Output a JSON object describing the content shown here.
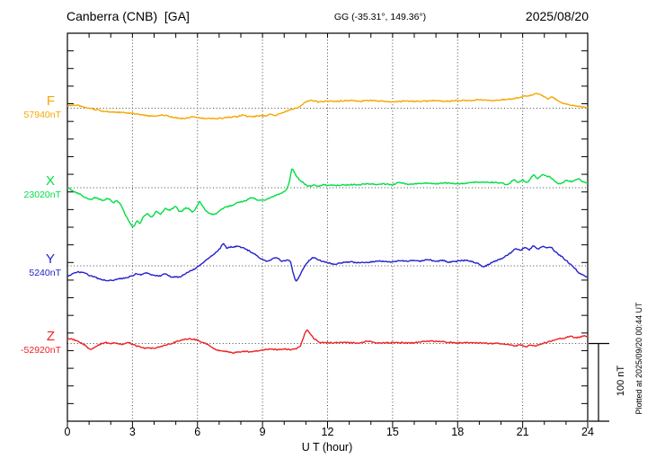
{
  "header": {
    "title": "Canberra (CNB)  [GA]",
    "coords": "GG (-35.31°, 149.36°)",
    "date": "2025/08/20"
  },
  "footer": {
    "plotted_at": "Plotted at 2025/09/20 00:44 UT"
  },
  "chart_data": {
    "type": "line",
    "title": "Canberra (CNB) [GA] magnetogram 2025/08/20",
    "xlabel": "U T (hour)",
    "x_range": [
      0,
      24
    ],
    "x_ticks": [
      "0",
      "3",
      "6",
      "9",
      "12",
      "15",
      "18",
      "21",
      "24"
    ],
    "grid": "dotted vertical gridlines every 3 hours; dotted horizontal baseline per component",
    "legend_position": "left margin, one colored label per trace baseline",
    "scale_bar": {
      "label": "100 nT",
      "nT": 100
    },
    "axis_color": "#000000",
    "grid_color": "#444444",
    "series": [
      {
        "name": "F",
        "baseline_label": "57940nT",
        "baseline_nT": 57940,
        "color": "#f5a700",
        "points_hour_nT": [
          [
            0,
            3
          ],
          [
            0.4,
            4
          ],
          [
            0.8,
            1
          ],
          [
            1.2,
            -1
          ],
          [
            1.7,
            -4
          ],
          [
            2.2,
            -5
          ],
          [
            2.7,
            -6
          ],
          [
            3.1,
            -7
          ],
          [
            3.5,
            -9
          ],
          [
            4,
            -10
          ],
          [
            4.4,
            -9
          ],
          [
            4.9,
            -12
          ],
          [
            5.4,
            -13
          ],
          [
            5.8,
            -11
          ],
          [
            6.2,
            -13
          ],
          [
            6.6,
            -13
          ],
          [
            7,
            -13
          ],
          [
            7.4,
            -12
          ],
          [
            7.8,
            -11
          ],
          [
            8.1,
            -9
          ],
          [
            8.4,
            -11
          ],
          [
            8.8,
            -10
          ],
          [
            9.1,
            -10
          ],
          [
            9.35,
            -8
          ],
          [
            9.6,
            -9
          ],
          [
            10,
            -5
          ],
          [
            10.4,
            -1
          ],
          [
            10.7,
            2
          ],
          [
            11,
            8
          ],
          [
            11.3,
            10
          ],
          [
            11.6,
            8
          ],
          [
            12,
            9
          ],
          [
            12.5,
            9
          ],
          [
            13,
            10
          ],
          [
            13.5,
            9
          ],
          [
            14,
            10
          ],
          [
            14.5,
            9
          ],
          [
            15,
            8
          ],
          [
            15.5,
            9
          ],
          [
            16,
            9
          ],
          [
            16.5,
            9
          ],
          [
            17,
            10
          ],
          [
            17.5,
            9
          ],
          [
            18,
            10
          ],
          [
            18.5,
            10
          ],
          [
            19,
            11
          ],
          [
            19.5,
            10
          ],
          [
            20,
            11
          ],
          [
            20.5,
            12
          ],
          [
            21,
            15
          ],
          [
            21.4,
            17
          ],
          [
            21.7,
            19
          ],
          [
            22,
            15
          ],
          [
            22.15,
            12
          ],
          [
            22.35,
            14
          ],
          [
            22.6,
            10
          ],
          [
            23,
            5
          ],
          [
            23.4,
            3
          ],
          [
            23.7,
            2
          ],
          [
            24,
            1
          ]
        ]
      },
      {
        "name": "X",
        "baseline_label": "23020nT",
        "baseline_nT": 23020,
        "color": "#00dd44",
        "points_hour_nT": [
          [
            0,
            0
          ],
          [
            0.3,
            -5
          ],
          [
            0.6,
            -9
          ],
          [
            1,
            -15
          ],
          [
            1.3,
            -13
          ],
          [
            1.6,
            -16
          ],
          [
            1.9,
            -14
          ],
          [
            2.1,
            -19
          ],
          [
            2.3,
            -17
          ],
          [
            2.5,
            -24
          ],
          [
            2.7,
            -36
          ],
          [
            2.9,
            -46
          ],
          [
            3.05,
            -50
          ],
          [
            3.2,
            -43
          ],
          [
            3.35,
            -46
          ],
          [
            3.5,
            -38
          ],
          [
            3.7,
            -34
          ],
          [
            3.9,
            -38
          ],
          [
            4.1,
            -31
          ],
          [
            4.3,
            -34
          ],
          [
            4.5,
            -27
          ],
          [
            4.7,
            -29
          ],
          [
            5,
            -25
          ],
          [
            5.2,
            -31
          ],
          [
            5.5,
            -26
          ],
          [
            5.8,
            -31
          ],
          [
            6,
            -23
          ],
          [
            6.1,
            -18
          ],
          [
            6.25,
            -25
          ],
          [
            6.5,
            -32
          ],
          [
            6.8,
            -34
          ],
          [
            7,
            -30
          ],
          [
            7.3,
            -25
          ],
          [
            7.6,
            -23
          ],
          [
            7.9,
            -19
          ],
          [
            8.2,
            -17
          ],
          [
            8.5,
            -13
          ],
          [
            8.8,
            -16
          ],
          [
            9,
            -16
          ],
          [
            9.3,
            -14
          ],
          [
            9.6,
            -10
          ],
          [
            9.9,
            -7
          ],
          [
            10.1,
            -3
          ],
          [
            10.25,
            9
          ],
          [
            10.35,
            24
          ],
          [
            10.5,
            18
          ],
          [
            10.65,
            12
          ],
          [
            10.8,
            8
          ],
          [
            11,
            4
          ],
          [
            11.2,
            2
          ],
          [
            11.4,
            3
          ],
          [
            11.6,
            2
          ],
          [
            11.8,
            4
          ],
          [
            12,
            3
          ],
          [
            12.5,
            3
          ],
          [
            13,
            4
          ],
          [
            13.5,
            4
          ],
          [
            14,
            5
          ],
          [
            14.3,
            4
          ],
          [
            14.6,
            5
          ],
          [
            15,
            4
          ],
          [
            15.3,
            7
          ],
          [
            15.6,
            5
          ],
          [
            16,
            5
          ],
          [
            16.5,
            6
          ],
          [
            17,
            5
          ],
          [
            17.5,
            6
          ],
          [
            18,
            5
          ],
          [
            18.5,
            6
          ],
          [
            19,
            7
          ],
          [
            19.5,
            7
          ],
          [
            20,
            6
          ],
          [
            20.3,
            4
          ],
          [
            20.6,
            10
          ],
          [
            20.8,
            7
          ],
          [
            21,
            10
          ],
          [
            21.2,
            7
          ],
          [
            21.5,
            16
          ],
          [
            21.7,
            12
          ],
          [
            21.9,
            17
          ],
          [
            22.1,
            15
          ],
          [
            22.3,
            13
          ],
          [
            22.5,
            8
          ],
          [
            22.7,
            5
          ],
          [
            23,
            9
          ],
          [
            23.3,
            8
          ],
          [
            23.6,
            11
          ],
          [
            23.8,
            7
          ],
          [
            24,
            6
          ]
        ]
      },
      {
        "name": "Y",
        "baseline_label": "5240nT",
        "baseline_nT": 5240,
        "color": "#2222cc",
        "points_hour_nT": [
          [
            0,
            -13
          ],
          [
            0.3,
            -10
          ],
          [
            0.5,
            -8
          ],
          [
            0.8,
            -9
          ],
          [
            1,
            -12
          ],
          [
            1.3,
            -15
          ],
          [
            1.6,
            -18
          ],
          [
            2,
            -19
          ],
          [
            2.3,
            -17
          ],
          [
            2.6,
            -16
          ],
          [
            3,
            -13
          ],
          [
            3.2,
            -10
          ],
          [
            3.4,
            -12
          ],
          [
            3.6,
            -9
          ],
          [
            3.8,
            -11
          ],
          [
            4,
            -12
          ],
          [
            4.3,
            -13
          ],
          [
            4.5,
            -10
          ],
          [
            4.8,
            -14
          ],
          [
            5,
            -14
          ],
          [
            5.2,
            -14
          ],
          [
            5.5,
            -9
          ],
          [
            5.8,
            -5
          ],
          [
            6,
            -1
          ],
          [
            6.2,
            3
          ],
          [
            6.5,
            10
          ],
          [
            6.8,
            16
          ],
          [
            7,
            21
          ],
          [
            7.2,
            28
          ],
          [
            7.35,
            23
          ],
          [
            7.5,
            24
          ],
          [
            7.8,
            25
          ],
          [
            8,
            24
          ],
          [
            8.2,
            22
          ],
          [
            8.5,
            17
          ],
          [
            8.8,
            12
          ],
          [
            9,
            8
          ],
          [
            9.3,
            6
          ],
          [
            9.5,
            10
          ],
          [
            9.7,
            10
          ],
          [
            9.9,
            6
          ],
          [
            10.1,
            7
          ],
          [
            10.3,
            5
          ],
          [
            10.4,
            -8
          ],
          [
            10.55,
            -19
          ],
          [
            10.7,
            -14
          ],
          [
            10.85,
            -5
          ],
          [
            11.05,
            4
          ],
          [
            11.3,
            10
          ],
          [
            11.5,
            9
          ],
          [
            11.7,
            6
          ],
          [
            12,
            4
          ],
          [
            12.3,
            2
          ],
          [
            12.6,
            4
          ],
          [
            13,
            5
          ],
          [
            13.5,
            4
          ],
          [
            14,
            5
          ],
          [
            14.5,
            6
          ],
          [
            15,
            5
          ],
          [
            15.3,
            7
          ],
          [
            15.6,
            6
          ],
          [
            16,
            7
          ],
          [
            16.3,
            6
          ],
          [
            16.6,
            8
          ],
          [
            17,
            6
          ],
          [
            17.3,
            7
          ],
          [
            17.6,
            5
          ],
          [
            18,
            6
          ],
          [
            18.4,
            7
          ],
          [
            18.7,
            5
          ],
          [
            19,
            2
          ],
          [
            19.2,
            -1
          ],
          [
            19.5,
            3
          ],
          [
            19.8,
            7
          ],
          [
            20,
            9
          ],
          [
            20.3,
            14
          ],
          [
            20.5,
            18
          ],
          [
            20.7,
            22
          ],
          [
            20.9,
            20
          ],
          [
            21.1,
            24
          ],
          [
            21.3,
            21
          ],
          [
            21.5,
            26
          ],
          [
            21.7,
            22
          ],
          [
            21.9,
            25
          ],
          [
            22.1,
            23
          ],
          [
            22.3,
            24
          ],
          [
            22.5,
            18
          ],
          [
            22.8,
            12
          ],
          [
            23,
            7
          ],
          [
            23.2,
            2
          ],
          [
            23.4,
            -3
          ],
          [
            23.6,
            -9
          ],
          [
            23.8,
            -12
          ],
          [
            24,
            -15
          ]
        ]
      },
      {
        "name": "Z",
        "baseline_label": "-52920nT",
        "baseline_nT": -52920,
        "color": "#ee2222",
        "points_hour_nT": [
          [
            0,
            6
          ],
          [
            0.3,
            5
          ],
          [
            0.5,
            2
          ],
          [
            0.8,
            -2
          ],
          [
            1,
            -7
          ],
          [
            1.2,
            -6
          ],
          [
            1.5,
            -1
          ],
          [
            1.8,
            1
          ],
          [
            2,
            0
          ],
          [
            2.2,
            1
          ],
          [
            2.5,
            -1
          ],
          [
            2.8,
            1
          ],
          [
            3,
            -1
          ],
          [
            3.3,
            -4
          ],
          [
            3.6,
            -6
          ],
          [
            3.9,
            -6
          ],
          [
            4.2,
            -5
          ],
          [
            4.5,
            -2
          ],
          [
            4.8,
            0
          ],
          [
            5.1,
            3
          ],
          [
            5.4,
            5
          ],
          [
            5.6,
            6
          ],
          [
            5.9,
            5
          ],
          [
            6.2,
            2
          ],
          [
            6.5,
            -2
          ],
          [
            6.8,
            -7
          ],
          [
            7,
            -9
          ],
          [
            7.3,
            -10
          ],
          [
            7.6,
            -12
          ],
          [
            7.9,
            -11
          ],
          [
            8.2,
            -10
          ],
          [
            8.5,
            -11
          ],
          [
            8.8,
            -9
          ],
          [
            9.1,
            -8
          ],
          [
            9.4,
            -7
          ],
          [
            9.7,
            -8
          ],
          [
            10,
            -7
          ],
          [
            10.3,
            -8
          ],
          [
            10.6,
            -6
          ],
          [
            10.75,
            -3
          ],
          [
            10.9,
            9
          ],
          [
            11.05,
            17
          ],
          [
            11.2,
            12
          ],
          [
            11.4,
            6
          ],
          [
            11.6,
            2
          ],
          [
            11.8,
            1
          ],
          [
            12,
            1
          ],
          [
            12.5,
            1
          ],
          [
            13,
            1
          ],
          [
            13.5,
            1
          ],
          [
            13.9,
            3
          ],
          [
            14.3,
            1
          ],
          [
            15,
            1
          ],
          [
            15.5,
            1
          ],
          [
            16,
            1
          ],
          [
            16.5,
            3
          ],
          [
            17,
            3
          ],
          [
            17.5,
            2
          ],
          [
            18,
            1
          ],
          [
            18.5,
            1
          ],
          [
            19,
            1
          ],
          [
            19.5,
            0
          ],
          [
            20,
            0
          ],
          [
            20.3,
            -1
          ],
          [
            20.6,
            -3
          ],
          [
            20.9,
            -2
          ],
          [
            21.1,
            -4
          ],
          [
            21.4,
            -2
          ],
          [
            21.6,
            -3
          ],
          [
            21.8,
            -1
          ],
          [
            22,
            1
          ],
          [
            22.3,
            3
          ],
          [
            22.6,
            6
          ],
          [
            22.9,
            7
          ],
          [
            23.2,
            9
          ],
          [
            23.4,
            8
          ],
          [
            23.6,
            8
          ],
          [
            23.8,
            10
          ],
          [
            24,
            9
          ]
        ]
      }
    ]
  }
}
